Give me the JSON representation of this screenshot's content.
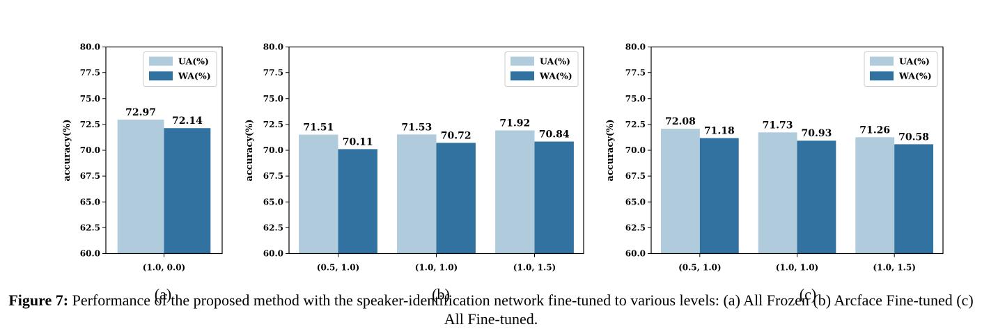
{
  "chart_data": [
    {
      "type": "bar",
      "panel_label": "(a)",
      "ylabel": "accuracy(%)",
      "ylim": [
        60.0,
        80.0
      ],
      "yticks": [
        "60.0",
        "62.5",
        "65.0",
        "67.5",
        "70.0",
        "72.5",
        "75.0",
        "77.5",
        "80.0"
      ],
      "categories": [
        "(1.0, 0.0)"
      ],
      "series": [
        {
          "name": "UA(%)",
          "values": [
            72.97
          ],
          "labels": [
            "72.97"
          ],
          "color": "#afcbdc"
        },
        {
          "name": "WA(%)",
          "values": [
            72.14
          ],
          "labels": [
            "72.14"
          ],
          "color": "#3172a0"
        }
      ],
      "legend": "top-right",
      "grid": false
    },
    {
      "type": "bar",
      "panel_label": "(b)",
      "ylabel": "accuracy(%)",
      "ylim": [
        60.0,
        80.0
      ],
      "yticks": [
        "60.0",
        "62.5",
        "65.0",
        "67.5",
        "70.0",
        "72.5",
        "75.0",
        "77.5",
        "80.0"
      ],
      "categories": [
        "(0.5, 1.0)",
        "(1.0, 1.0)",
        "(1.0, 1.5)"
      ],
      "series": [
        {
          "name": "UA(%)",
          "values": [
            71.51,
            71.53,
            71.92
          ],
          "labels": [
            "71.51",
            "71.53",
            "71.92"
          ],
          "color": "#afcbdc"
        },
        {
          "name": "WA(%)",
          "values": [
            70.11,
            70.72,
            70.84
          ],
          "labels": [
            "70.11",
            "70.72",
            "70.84"
          ],
          "color": "#3172a0"
        }
      ],
      "legend": "top-right",
      "grid": false
    },
    {
      "type": "bar",
      "panel_label": "(c)",
      "ylabel": "accuracy(%)",
      "ylim": [
        60.0,
        80.0
      ],
      "yticks": [
        "60.0",
        "62.5",
        "65.0",
        "67.5",
        "70.0",
        "72.5",
        "75.0",
        "77.5",
        "80.0"
      ],
      "categories": [
        "(0.5, 1.0)",
        "(1.0, 1.0)",
        "(1.0, 1.5)"
      ],
      "series": [
        {
          "name": "UA(%)",
          "values": [
            72.08,
            71.73,
            71.26
          ],
          "labels": [
            "72.08",
            "71.73",
            "71.26"
          ],
          "color": "#afcbdc"
        },
        {
          "name": "WA(%)",
          "values": [
            71.18,
            70.93,
            70.58
          ],
          "labels": [
            "71.18",
            "70.93",
            "70.58"
          ],
          "color": "#3172a0"
        }
      ],
      "legend": "top-right",
      "grid": false
    }
  ],
  "caption": {
    "figure_number": "Figure 7:",
    "text": " Performance of the proposed method with the speaker-identification network fine-tuned to various levels: (a) All Frozen (b) Arcface Fine-tuned (c) All Fine-tuned."
  }
}
